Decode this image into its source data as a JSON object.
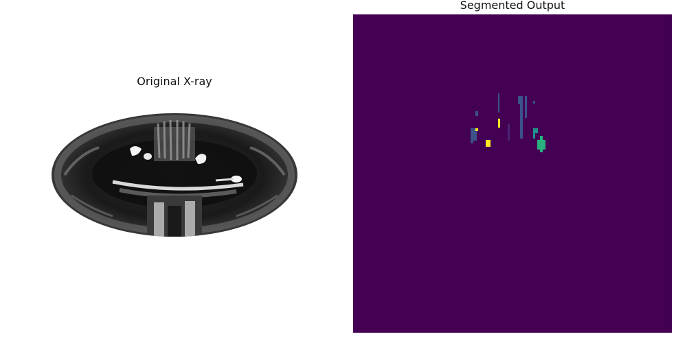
{
  "panels": {
    "left": {
      "title": "Original X-ray"
    },
    "right": {
      "title": "Segmented Output"
    }
  },
  "colors": {
    "background": "#ffffff",
    "seg_background": "#440154",
    "class_blue": "#3b528b",
    "class_teal": "#21918c",
    "class_green": "#2ab07f",
    "class_yellow": "#fde725",
    "class_dark_purple": "#482475"
  },
  "image_descriptions": {
    "left": "grayscale dental panoramic x-ray in elliptical crop",
    "right": "viridis-colored segmentation mask"
  }
}
